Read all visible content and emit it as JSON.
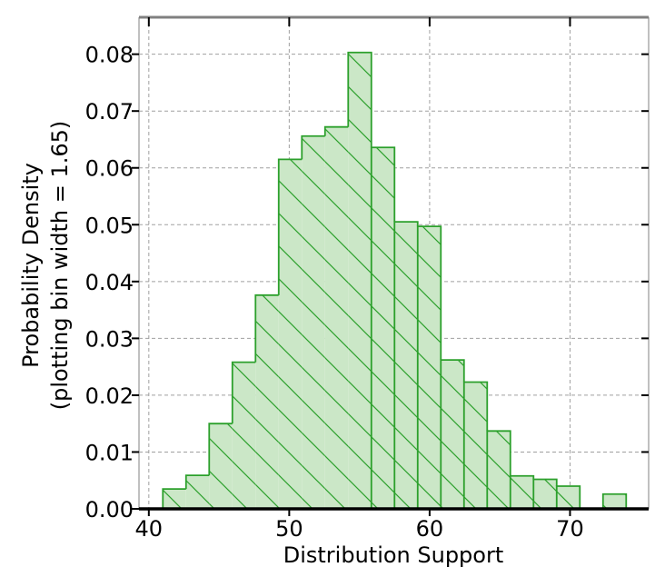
{
  "chart_data": {
    "type": "histogram",
    "xlabel": "Distribution Support",
    "ylabel_lines": [
      "Probability Density",
      "(plotting bin width = 1.65)"
    ],
    "xlim": [
      39.3,
      75.6
    ],
    "ylim": [
      0,
      0.0865
    ],
    "x_ticks": [
      40,
      50,
      60,
      70
    ],
    "x_tick_labels": [
      "40",
      "50",
      "60",
      "70"
    ],
    "y_ticks": [
      0.0,
      0.01,
      0.02,
      0.03,
      0.04,
      0.05,
      0.06,
      0.07,
      0.08
    ],
    "y_tick_labels": [
      "0.00",
      "0.01",
      "0.02",
      "0.03",
      "0.04",
      "0.05",
      "0.06",
      "0.07",
      "0.08"
    ],
    "grid": true,
    "bin_width": 1.65,
    "bin_start": 41.0,
    "densities": [
      0.0035,
      0.0059,
      0.015,
      0.0258,
      0.0376,
      0.0615,
      0.0656,
      0.0672,
      0.0803,
      0.0636,
      0.0505,
      0.0497,
      0.0262,
      0.0223,
      0.0137,
      0.0058,
      0.0052,
      0.004,
      0.0,
      0.0026
    ],
    "colors": {
      "edge": "#2ca02c",
      "fill": "#cbe7c7",
      "hatch": "#2ca02c",
      "grid": "#a0a0a0"
    }
  }
}
